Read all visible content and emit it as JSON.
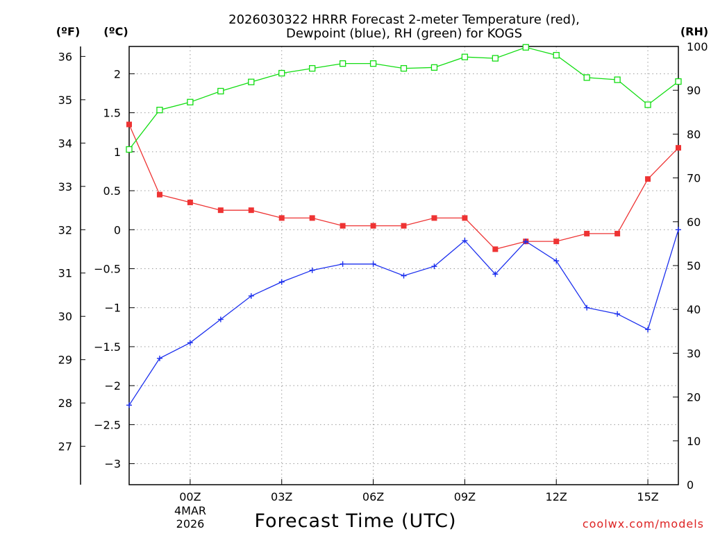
{
  "chart_data": {
    "type": "line",
    "title_lines": [
      "2026030322 HRRR Forecast 2-meter Temperature (red),",
      "Dewpoint (blue), RH (green) for KOGS"
    ],
    "xlabel": "Forecast Time (UTC)",
    "date_labels": [
      "4MAR",
      "2026"
    ],
    "credit": "coolwx.com/models",
    "units": {
      "fahrenheit": "(ºF)",
      "celsius": "(ºC)",
      "rh": "(RH)"
    },
    "x_hours": [
      -2,
      -1,
      0,
      1,
      2,
      3,
      4,
      5,
      6,
      7,
      8,
      9,
      10,
      11,
      12,
      13,
      14,
      15,
      16
    ],
    "x_range": [
      -2,
      16
    ],
    "x_ticks": [
      {
        "hour": 0,
        "label": "00Z"
      },
      {
        "hour": 3,
        "label": "03Z"
      },
      {
        "hour": 6,
        "label": "06Z"
      },
      {
        "hour": 9,
        "label": "09Z"
      },
      {
        "hour": 12,
        "label": "12Z"
      },
      {
        "hour": 15,
        "label": "15Z"
      }
    ],
    "celsius_axis": {
      "range": [
        -3.27,
        2.35
      ],
      "ticks": [
        -3,
        -2.5,
        -2,
        -1.5,
        -1,
        -0.5,
        0,
        0.5,
        1,
        1.5,
        2
      ],
      "tick_labels": [
        "−3",
        "−2.5",
        "−2",
        "−1.5",
        "−1",
        "−0.5",
        "0",
        "0.5",
        "1",
        "1.5",
        "2"
      ]
    },
    "fahrenheit_axis": {
      "ticks": [
        27,
        28,
        29,
        30,
        31,
        32,
        33,
        34,
        35,
        36
      ],
      "tick_labels": [
        "27",
        "28",
        "29",
        "30",
        "31",
        "32",
        "33",
        "34",
        "35",
        "36"
      ]
    },
    "rh_axis": {
      "range": [
        0,
        100
      ],
      "ticks": [
        0,
        10,
        20,
        30,
        40,
        50,
        60,
        70,
        80,
        90,
        100
      ],
      "tick_labels": [
        "0",
        "10",
        "20",
        "30",
        "40",
        "50",
        "60",
        "70",
        "80",
        "90",
        "100"
      ]
    },
    "series": [
      {
        "name": "2-meter Temperature",
        "axis": "celsius",
        "color": "#ee3333",
        "marker": "filled-square",
        "values": [
          1.35,
          0.45,
          0.35,
          0.25,
          0.25,
          0.15,
          0.15,
          0.05,
          0.05,
          0.05,
          0.15,
          0.15,
          -0.25,
          -0.15,
          -0.15,
          -0.05,
          -0.05,
          0.65,
          1.05
        ]
      },
      {
        "name": "Dewpoint",
        "axis": "celsius",
        "color": "#1a2eee",
        "marker": "plus",
        "values": [
          -2.25,
          -1.65,
          -1.45,
          -1.15,
          -0.85,
          -0.67,
          -0.52,
          -0.44,
          -0.44,
          -0.59,
          -0.47,
          -0.14,
          -0.57,
          -0.15,
          -0.4,
          -1.0,
          -1.08,
          -1.28,
          0.0
        ]
      },
      {
        "name": "RH",
        "axis": "rh",
        "color": "#11dd11",
        "marker": "open-square",
        "values": [
          76.5,
          85.5,
          87.3,
          89.8,
          91.9,
          93.9,
          95.0,
          96.1,
          96.1,
          95.0,
          95.2,
          97.6,
          97.3,
          99.8,
          98.0,
          92.9,
          92.4,
          86.7,
          92.0
        ]
      }
    ],
    "colors": {
      "grid": "#999999",
      "credit": "#dd2222"
    }
  }
}
